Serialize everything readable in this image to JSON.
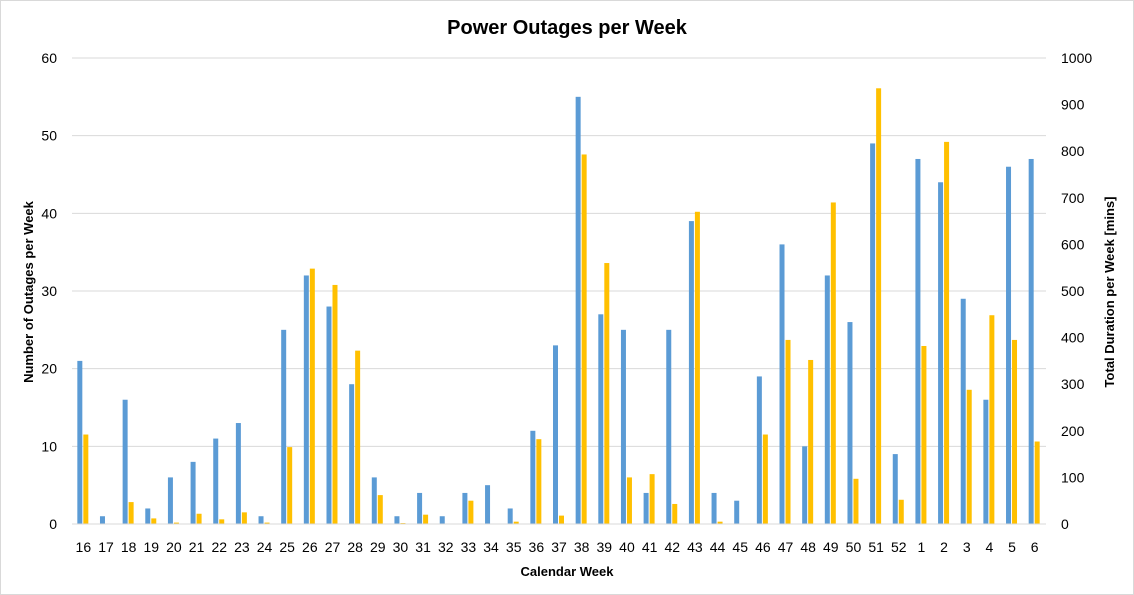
{
  "chart_data": {
    "type": "bar",
    "title": "Power Outages per Week",
    "xlabel": "Calendar Week",
    "ylabel": "Number of Outages per Week",
    "y2label": "Total Duration per Week [mins]",
    "ylim": [
      0,
      60
    ],
    "y2lim": [
      0,
      1000
    ],
    "yticks": [
      "0",
      "10",
      "20",
      "30",
      "40",
      "50",
      "60"
    ],
    "y2ticks": [
      "0",
      "100",
      "200",
      "300",
      "400",
      "500",
      "600",
      "700",
      "800",
      "900",
      "1000"
    ],
    "grid": true,
    "legend": "none",
    "categories": [
      "16",
      "17",
      "18",
      "19",
      "20",
      "21",
      "22",
      "23",
      "24",
      "25",
      "26",
      "27",
      "28",
      "29",
      "30",
      "31",
      "32",
      "33",
      "34",
      "35",
      "36",
      "37",
      "38",
      "39",
      "40",
      "41",
      "42",
      "43",
      "44",
      "45",
      "46",
      "47",
      "48",
      "49",
      "50",
      "51",
      "52",
      "1",
      "2",
      "3",
      "4",
      "5",
      "6"
    ],
    "series": [
      {
        "axis": "left",
        "color": "#5B9BD5",
        "values": [
          21,
          1,
          16,
          2,
          6,
          8,
          11,
          13,
          1,
          25,
          32,
          28,
          18,
          6,
          1,
          4,
          1,
          4,
          5,
          2,
          12,
          23,
          55,
          27,
          25,
          4,
          25,
          39,
          4,
          3,
          19,
          36,
          10,
          32,
          26,
          49,
          9,
          47,
          44,
          29,
          16,
          46,
          47
        ]
      },
      {
        "axis": "right",
        "color": "#FFC000",
        "values": [
          192,
          0,
          47,
          12,
          3,
          22,
          10,
          25,
          3,
          165,
          548,
          513,
          372,
          62,
          2,
          20,
          0,
          50,
          0,
          5,
          182,
          18,
          793,
          560,
          100,
          107,
          43,
          670,
          5,
          0,
          192,
          395,
          352,
          690,
          97,
          935,
          52,
          382,
          820,
          288,
          448,
          395,
          177
        ]
      }
    ]
  }
}
